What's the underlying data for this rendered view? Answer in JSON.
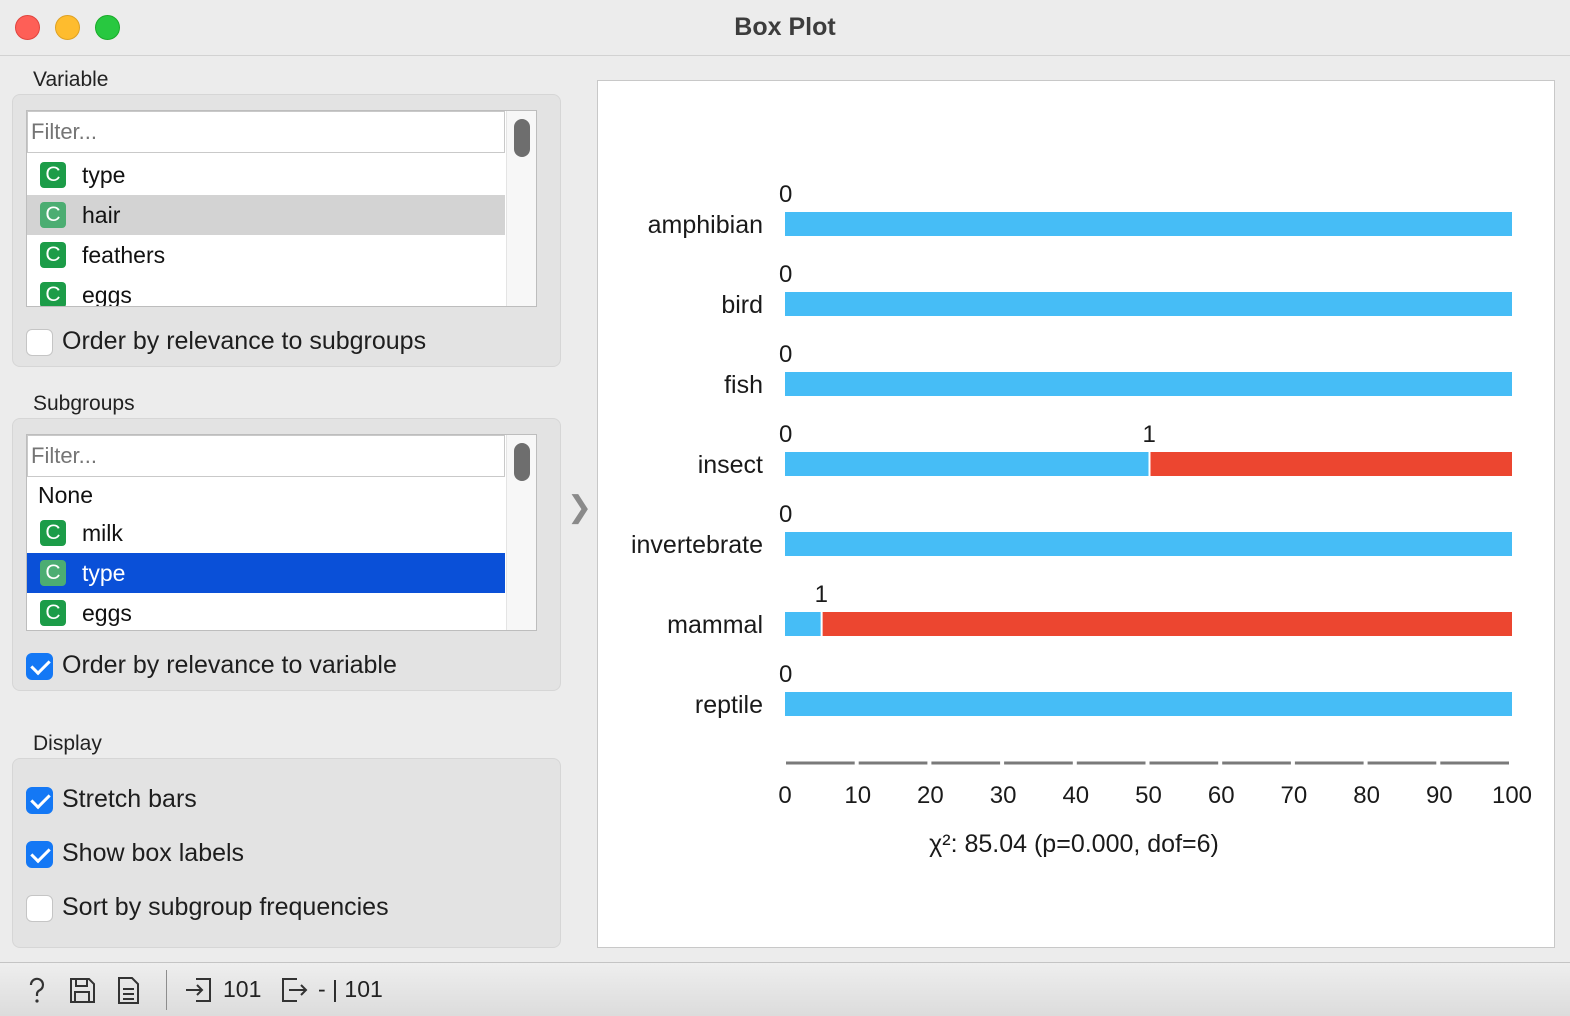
{
  "window": {
    "title": "Box Plot"
  },
  "variable_section": {
    "label": "Variable",
    "filter_placeholder": "Filter...",
    "items": [
      {
        "label": "type",
        "badge": "C",
        "state": "normal"
      },
      {
        "label": "hair",
        "badge": "C",
        "state": "hover"
      },
      {
        "label": "feathers",
        "badge": "C",
        "state": "normal"
      },
      {
        "label": "eggs",
        "badge": "C",
        "state": "normal"
      }
    ],
    "order_checkbox": {
      "label": "Order by relevance to subgroups",
      "checked": false
    }
  },
  "subgroups_section": {
    "label": "Subgroups",
    "filter_placeholder": "Filter...",
    "items": [
      {
        "label": "None",
        "badge": "",
        "state": "normal"
      },
      {
        "label": "milk",
        "badge": "C",
        "state": "normal"
      },
      {
        "label": "type",
        "badge": "C",
        "state": "selected"
      },
      {
        "label": "eggs",
        "badge": "C",
        "state": "normal"
      }
    ],
    "order_checkbox": {
      "label": "Order by relevance to variable",
      "checked": true
    }
  },
  "display_section": {
    "label": "Display",
    "stretch_bars": {
      "label": "Stretch bars",
      "checked": true
    },
    "show_box_labels": {
      "label": "Show box labels",
      "checked": true
    },
    "sort_by_freq": {
      "label": "Sort by subgroup frequencies",
      "checked": false
    }
  },
  "chart_data": {
    "type": "bar",
    "orientation": "horizontal",
    "stacked": true,
    "stretched": true,
    "categories": [
      "amphibian",
      "bird",
      "fish",
      "insect",
      "invertebrate",
      "mammal",
      "reptile"
    ],
    "value_labels": [
      "0",
      "1"
    ],
    "value_colors": [
      "#46bdf6",
      "#ec4630"
    ],
    "series": [
      {
        "values": [
          100,
          100,
          100,
          50,
          100,
          4.9,
          100
        ]
      },
      {
        "values": [
          0,
          0,
          0,
          50,
          0,
          95.1,
          0
        ]
      }
    ],
    "box_labels": [
      [
        {
          "text": "0",
          "at": 0
        }
      ],
      [
        {
          "text": "0",
          "at": 0
        }
      ],
      [
        {
          "text": "0",
          "at": 0
        }
      ],
      [
        {
          "text": "0",
          "at": 0
        },
        {
          "text": "1",
          "at": 50
        }
      ],
      [
        {
          "text": "0",
          "at": 0
        }
      ],
      [
        {
          "text": "1",
          "at": 4.9
        }
      ],
      [
        {
          "text": "0",
          "at": 0
        }
      ]
    ],
    "xlim": [
      0,
      100
    ],
    "xticks": [
      0,
      10,
      20,
      30,
      40,
      50,
      60,
      70,
      80,
      90,
      100
    ],
    "stat_text": "χ²: 85.04 (p=0.000, dof=6)"
  },
  "statusbar": {
    "input_count": "101",
    "output_text": "- | 101"
  }
}
